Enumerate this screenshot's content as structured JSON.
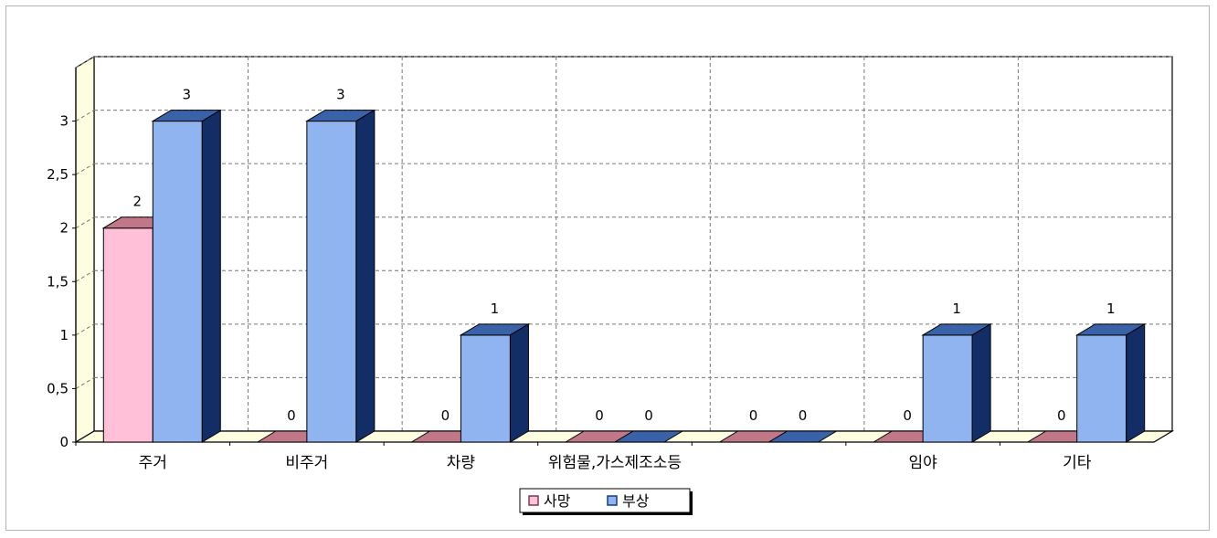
{
  "chart_data": {
    "type": "bar",
    "categories": [
      "주거",
      "비주거",
      "차량",
      "위험물,가스제조소등",
      "",
      "임야",
      "기타"
    ],
    "series": [
      {
        "name": "사망",
        "values": [
          2,
          0,
          0,
          0,
          0,
          0,
          0
        ]
      },
      {
        "name": "부상",
        "values": [
          3,
          3,
          1,
          0,
          0,
          1,
          1
        ]
      }
    ],
    "ylim": [
      0,
      3.5
    ],
    "yticks": [
      "0",
      "0,5",
      "1",
      "1,5",
      "2",
      "2,5",
      "3"
    ],
    "grid": true,
    "legend_position": "bottom-center",
    "colors": {
      "death_front": "#ffc0d8",
      "death_top": "#c07888",
      "death_side": "#9a5a6a",
      "injury_front": "#8fb4f0",
      "injury_top": "#3a62a8",
      "injury_side": "#132e66",
      "floor": "#fdfde0",
      "wall": "#fdfde0"
    }
  }
}
